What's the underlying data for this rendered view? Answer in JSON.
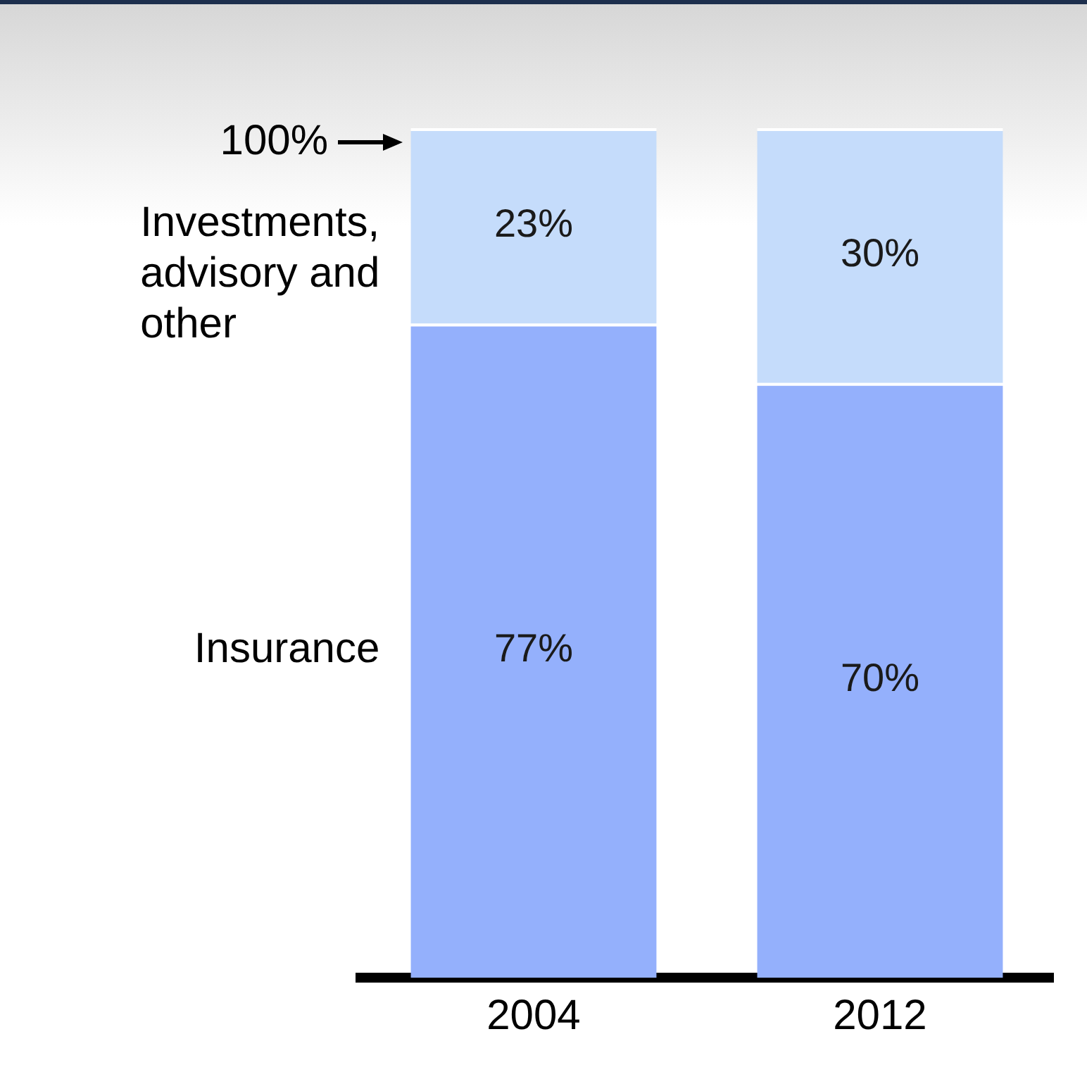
{
  "chart_data": {
    "type": "bar",
    "stacked": true,
    "categories": [
      "2004",
      "2012"
    ],
    "series": [
      {
        "name": "Insurance",
        "color": "#94b0fc",
        "values": [
          77,
          70
        ],
        "value_labels": [
          "77%",
          "70%"
        ]
      },
      {
        "name": "Investments, advisory and other",
        "color": "#c5dcfb",
        "values": [
          23,
          30
        ],
        "value_labels": [
          "23%",
          "30%"
        ]
      }
    ],
    "grid": false,
    "legend": false,
    "annotations": [
      "100%"
    ]
  }
}
